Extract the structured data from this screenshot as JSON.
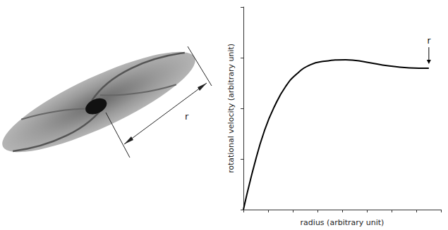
{
  "chart_data": {
    "type": "line",
    "x": [
      0,
      0.43,
      0.86,
      1.29,
      1.71,
      2.14,
      2.71,
      3.29,
      4.14,
      5.0,
      5.86,
      6.71,
      7.51
    ],
    "values": [
      0,
      0.86,
      1.57,
      2.07,
      2.43,
      2.67,
      2.86,
      2.93,
      2.96,
      2.91,
      2.84,
      2.8,
      2.79
    ],
    "xlabel": "radius (arbitrary unit)",
    "ylabel": "rotational velocity (arbitrary unit)",
    "xlim": [
      0,
      8
    ],
    "xticks": [
      0,
      1,
      2,
      3,
      4,
      5,
      6,
      7,
      8
    ],
    "ylim": [
      0,
      4
    ],
    "yticks": [
      0,
      1,
      2,
      3,
      4
    ],
    "tick_labels": false,
    "grid": false,
    "color": "#000000",
    "annotations": [
      {
        "text": "r",
        "x": 7.51,
        "y": 2.79
      }
    ]
  },
  "illustration": {
    "label": "r"
  }
}
